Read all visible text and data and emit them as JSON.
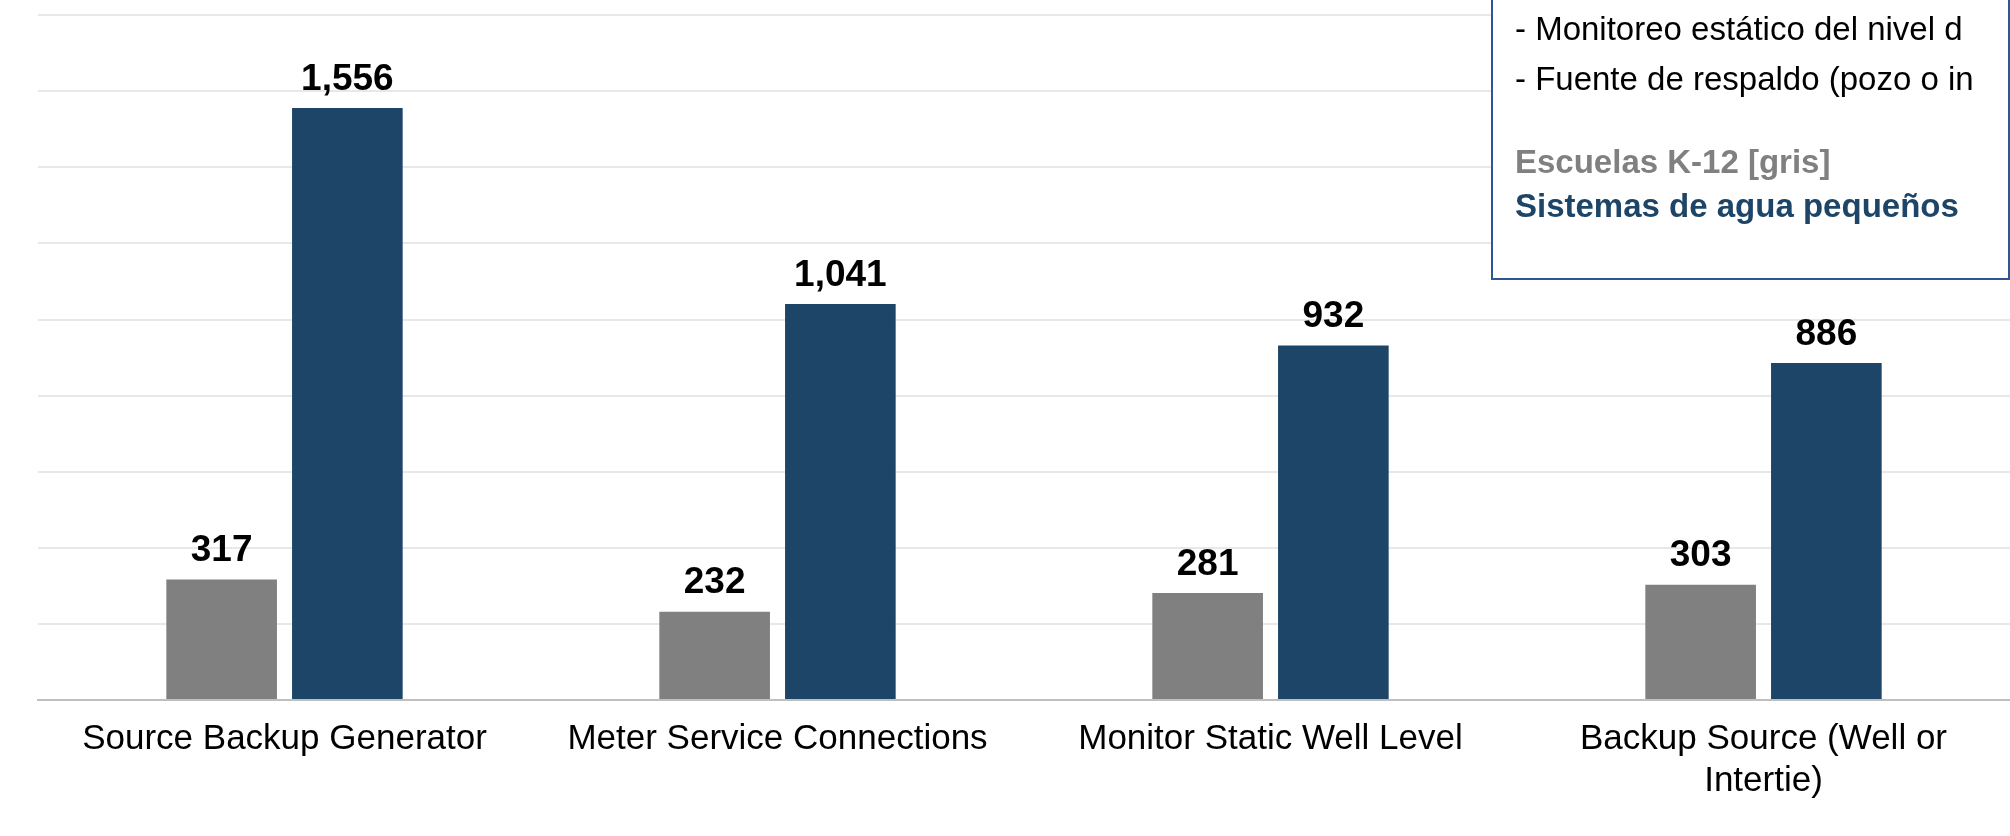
{
  "chart_data": {
    "type": "bar",
    "categories": [
      "Source Backup Generator",
      "Meter Service Connections",
      "Monitor Static Well Level",
      "Backup Source (Well or Intertie)"
    ],
    "series": [
      {
        "name": "Escuelas K-12 [gris]",
        "color": "#808080",
        "values": [
          317,
          232,
          281,
          303
        ],
        "value_labels": [
          "317",
          "232",
          "281",
          "303"
        ]
      },
      {
        "name": "Sistemas de agua pequeños",
        "color": "#1d4567",
        "values": [
          1556,
          1041,
          932,
          886
        ],
        "value_labels": [
          "1,556",
          "1,041",
          "932",
          "886"
        ]
      }
    ],
    "ylim": [
      0,
      1840
    ],
    "yticks": [
      {
        "value": 0,
        "label": null
      },
      {
        "value": 200,
        "label": null
      },
      {
        "value": 400,
        "label": null
      },
      {
        "value": 600,
        "label": null
      },
      {
        "value": 800,
        "label": null
      },
      {
        "value": 1000,
        "label": null
      },
      {
        "value": 1200,
        "label": null
      },
      {
        "value": 1400,
        "label": null
      },
      {
        "value": 1600,
        "label": null
      },
      {
        "value": 1800,
        "label": null
      }
    ],
    "grid": "y",
    "tick_labels": "x",
    "legend": "top right",
    "annotations": [
      "- Monitoreo estático del nivel d",
      "- Fuente de respaldo (pozo o in"
    ]
  }
}
